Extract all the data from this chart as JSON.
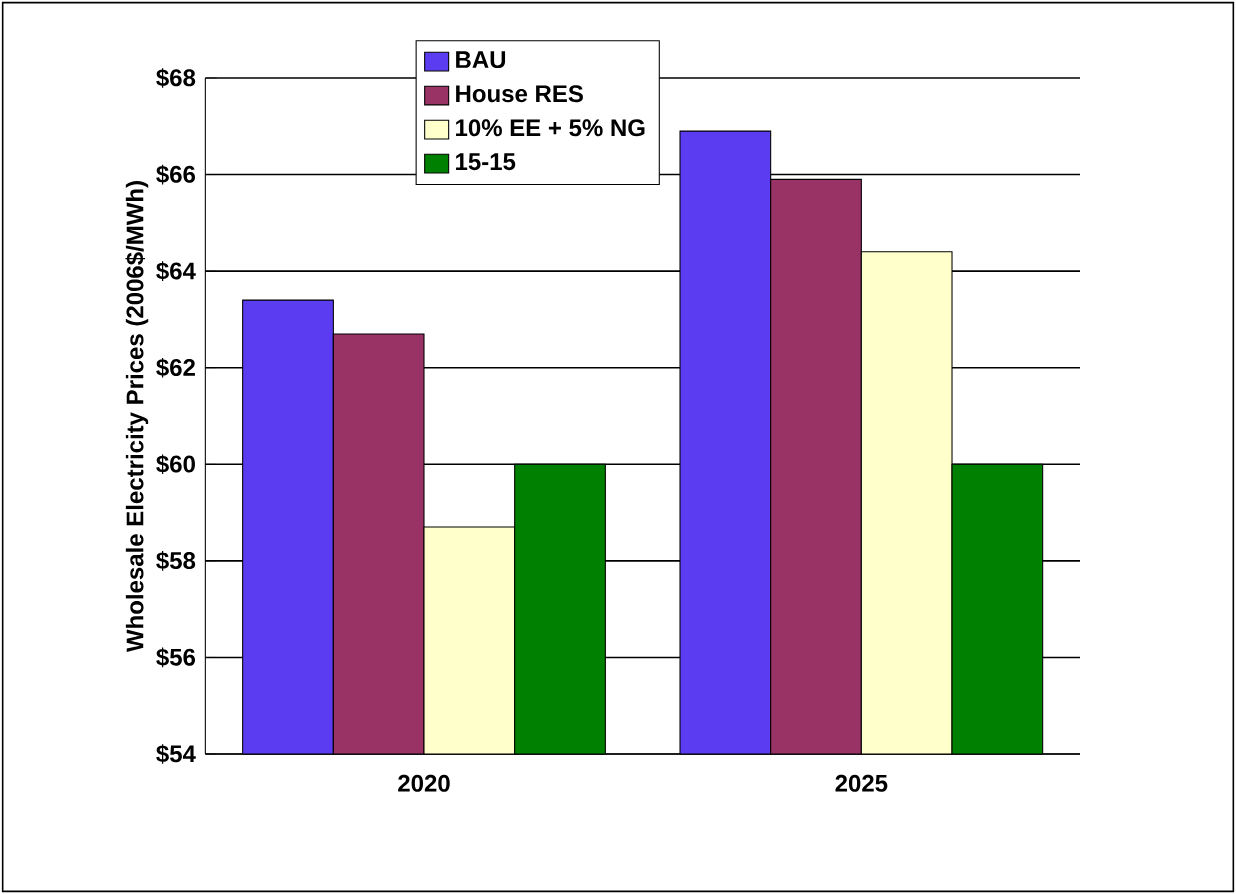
{
  "chart_data": {
    "type": "bar",
    "ylabel": "Wholesale Electricity Prices (2006$/MWh)",
    "categories": [
      "2020",
      "2025"
    ],
    "series": [
      {
        "name": "BAU",
        "color": "#5b3cf0",
        "values": [
          63.4,
          66.9
        ]
      },
      {
        "name": "House RES",
        "color": "#993366",
        "values": [
          62.7,
          65.9
        ]
      },
      {
        "name": "10% EE + 5% NG",
        "color": "#ffffcc",
        "values": [
          58.7,
          64.4
        ]
      },
      {
        "name": "15-15",
        "color": "#008000",
        "values": [
          60.0,
          60.0
        ]
      }
    ],
    "ylim": [
      54,
      68
    ],
    "yticks": [
      {
        "value": 54,
        "label": "$54"
      },
      {
        "value": 56,
        "label": "$56"
      },
      {
        "value": 58,
        "label": "$58"
      },
      {
        "value": 60,
        "label": "$60"
      },
      {
        "value": 62,
        "label": "$62"
      },
      {
        "value": 64,
        "label": "$64"
      },
      {
        "value": 66,
        "label": "$66"
      },
      {
        "value": 68,
        "label": "$68"
      }
    ],
    "grid": "y",
    "legend": "top"
  }
}
